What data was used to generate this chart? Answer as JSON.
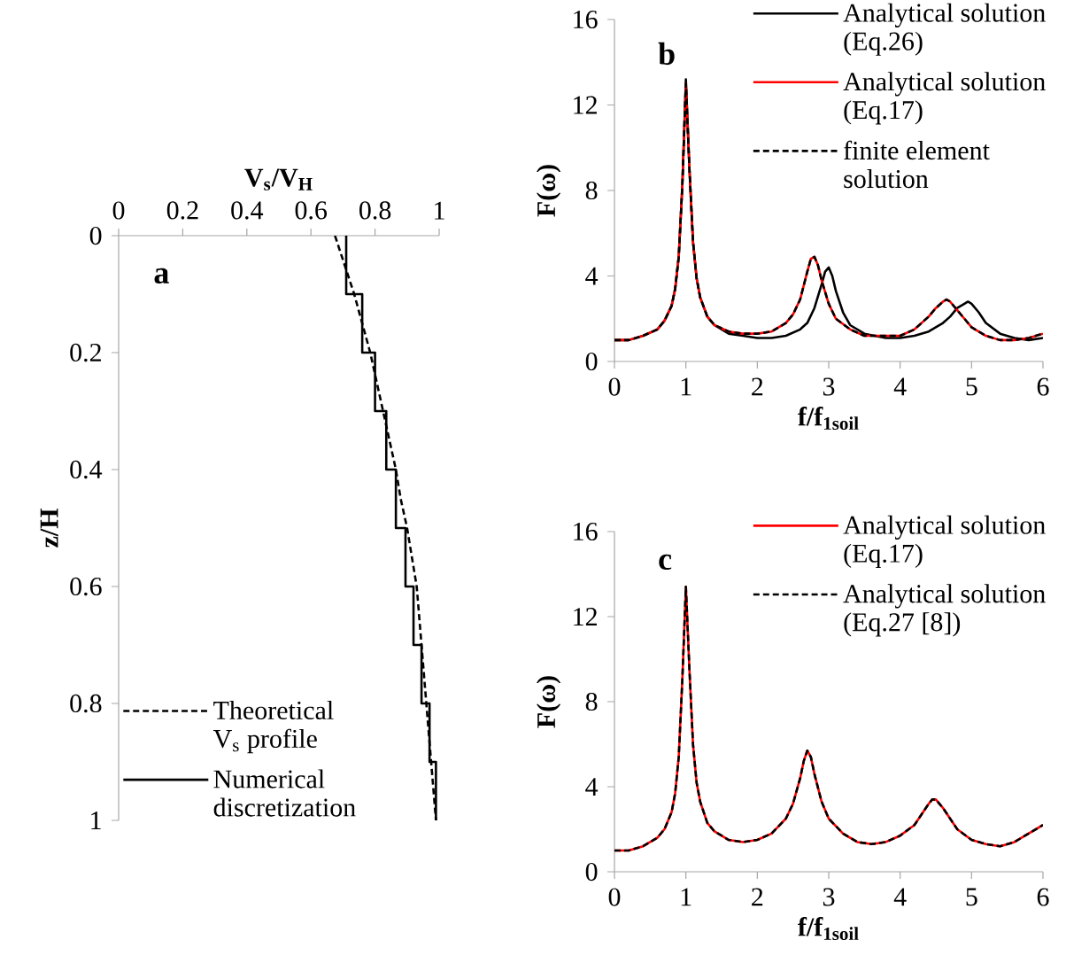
{
  "chart_data": [
    {
      "type": "line",
      "xlabel": "V$_{s}$/V$_{H}$",
      "ylabel": "z/H",
      "annotations": [
        "a"
      ],
      "xlim": [
        0,
        1
      ],
      "ylim": [
        1,
        0
      ],
      "xticks": [
        0,
        0.2,
        0.4,
        0.6,
        0.8,
        1
      ],
      "yticks": [
        0,
        0.2,
        0.4,
        0.6,
        0.8,
        1
      ],
      "legend": "bottom left",
      "series": [
        {
          "name": "Theoretical V$_{s}$ profile",
          "color": "#000000",
          "line_style": "dashed",
          "x": [
            0.675,
            0.705,
            0.735,
            0.76,
            0.785,
            0.805,
            0.825,
            0.845,
            0.865,
            0.88,
            0.9,
            0.915,
            0.93,
            0.945,
            0.96,
            0.975,
            0.99
          ],
          "values": [
            0,
            0.05,
            0.1,
            0.15,
            0.2,
            0.25,
            0.3,
            0.35,
            0.4,
            0.45,
            0.5,
            0.55,
            0.6,
            0.7,
            0.8,
            0.9,
            1
          ]
        },
        {
          "name": "Numerical discretization",
          "color": "#000000",
          "line_style": "solid",
          "x": [
            0.71,
            0.71,
            0.76,
            0.76,
            0.8,
            0.8,
            0.835,
            0.835,
            0.865,
            0.865,
            0.895,
            0.895,
            0.92,
            0.92,
            0.945,
            0.945,
            0.97,
            0.97,
            0.99,
            0.99
          ],
          "values": [
            0,
            0.1,
            0.1,
            0.2,
            0.2,
            0.3,
            0.3,
            0.4,
            0.4,
            0.5,
            0.5,
            0.6,
            0.6,
            0.7,
            0.7,
            0.8,
            0.8,
            0.9,
            0.9,
            1
          ]
        }
      ]
    },
    {
      "type": "line",
      "xlabel": "f/f$_{1soil}$",
      "ylabel": "F(ω)",
      "annotations": [
        "b"
      ],
      "xlim": [
        0,
        6
      ],
      "ylim": [
        0,
        16
      ],
      "xticks": [
        0,
        1,
        2,
        3,
        4,
        5,
        6
      ],
      "yticks": [
        0,
        4,
        8,
        12,
        16
      ],
      "legend": "top right",
      "series": [
        {
          "name": "Analytical solution (Eq.26)",
          "color": "#000000",
          "line_style": "solid",
          "x": [
            0,
            0.2,
            0.4,
            0.6,
            0.7,
            0.8,
            0.85,
            0.9,
            0.95,
            1.0,
            1.05,
            1.1,
            1.15,
            1.2,
            1.3,
            1.4,
            1.6,
            1.8,
            2.0,
            2.2,
            2.4,
            2.6,
            2.7,
            2.8,
            2.9,
            2.95,
            3.0,
            3.05,
            3.1,
            3.2,
            3.3,
            3.5,
            3.8,
            4.0,
            4.2,
            4.4,
            4.6,
            4.7,
            4.8,
            4.9,
            4.95,
            5.0,
            5.1,
            5.2,
            5.4,
            5.6,
            5.8,
            6.0
          ],
          "values": [
            1.0,
            1.0,
            1.2,
            1.5,
            1.9,
            2.6,
            3.4,
            4.9,
            8.2,
            13.2,
            9.0,
            5.6,
            3.9,
            3.0,
            2.1,
            1.7,
            1.3,
            1.2,
            1.1,
            1.1,
            1.2,
            1.5,
            1.8,
            2.5,
            3.6,
            4.2,
            4.4,
            4.0,
            3.3,
            2.3,
            1.7,
            1.3,
            1.1,
            1.1,
            1.2,
            1.4,
            1.8,
            2.1,
            2.5,
            2.7,
            2.8,
            2.7,
            2.3,
            1.8,
            1.3,
            1.1,
            1.0,
            1.1
          ]
        },
        {
          "name": "Analytical solution (Eq.17)",
          "color": "#ff0000",
          "line_style": "solid",
          "x": [
            0,
            0.2,
            0.4,
            0.6,
            0.7,
            0.8,
            0.85,
            0.9,
            0.95,
            1.0,
            1.05,
            1.1,
            1.15,
            1.2,
            1.3,
            1.4,
            1.6,
            1.8,
            2.0,
            2.2,
            2.4,
            2.5,
            2.6,
            2.7,
            2.75,
            2.8,
            2.85,
            2.9,
            3.0,
            3.1,
            3.3,
            3.5,
            3.8,
            4.0,
            4.2,
            4.4,
            4.5,
            4.6,
            4.65,
            4.7,
            4.8,
            4.9,
            5.0,
            5.2,
            5.4,
            5.6,
            5.8,
            6.0
          ],
          "values": [
            1.0,
            1.0,
            1.2,
            1.5,
            1.9,
            2.6,
            3.4,
            4.9,
            8.2,
            13.0,
            9.0,
            5.6,
            3.9,
            3.0,
            2.1,
            1.7,
            1.4,
            1.3,
            1.3,
            1.4,
            1.8,
            2.2,
            2.9,
            4.2,
            4.8,
            4.9,
            4.5,
            3.8,
            2.7,
            2.0,
            1.5,
            1.2,
            1.2,
            1.2,
            1.5,
            2.1,
            2.5,
            2.8,
            2.9,
            2.8,
            2.4,
            2.0,
            1.6,
            1.2,
            1.0,
            1.0,
            1.1,
            1.3
          ]
        },
        {
          "name": "finite element solution",
          "color": "#000000",
          "line_style": "dashed",
          "x": [
            0,
            0.2,
            0.4,
            0.6,
            0.7,
            0.8,
            0.85,
            0.9,
            0.95,
            1.0,
            1.05,
            1.1,
            1.15,
            1.2,
            1.3,
            1.4,
            1.6,
            1.8,
            2.0,
            2.2,
            2.4,
            2.5,
            2.6,
            2.7,
            2.75,
            2.8,
            2.85,
            2.9,
            3.0,
            3.1,
            3.3,
            3.5,
            3.8,
            4.0,
            4.2,
            4.4,
            4.5,
            4.6,
            4.65,
            4.7,
            4.8,
            4.9,
            5.0,
            5.2,
            5.4,
            5.6,
            5.8,
            6.0
          ],
          "values": [
            1.0,
            1.0,
            1.2,
            1.5,
            1.9,
            2.6,
            3.4,
            4.9,
            8.2,
            13.0,
            9.0,
            5.6,
            3.9,
            3.0,
            2.1,
            1.7,
            1.4,
            1.3,
            1.3,
            1.4,
            1.8,
            2.2,
            2.9,
            4.2,
            4.8,
            4.9,
            4.5,
            3.8,
            2.7,
            2.0,
            1.5,
            1.2,
            1.2,
            1.2,
            1.5,
            2.1,
            2.5,
            2.8,
            2.9,
            2.8,
            2.4,
            2.0,
            1.6,
            1.2,
            1.0,
            1.0,
            1.1,
            1.3
          ]
        }
      ]
    },
    {
      "type": "line",
      "xlabel": "f/f$_{1soil}$",
      "ylabel": "F(ω)",
      "annotations": [
        "c"
      ],
      "xlim": [
        0,
        6
      ],
      "ylim": [
        0,
        16
      ],
      "xticks": [
        0,
        1,
        2,
        3,
        4,
        5,
        6
      ],
      "yticks": [
        0,
        4,
        8,
        12,
        16
      ],
      "legend": "top right",
      "series": [
        {
          "name": "Analytical solution (Eq.17)",
          "color": "#ff0000",
          "line_style": "solid",
          "x": [
            0,
            0.2,
            0.4,
            0.6,
            0.7,
            0.8,
            0.85,
            0.9,
            0.95,
            1.0,
            1.05,
            1.1,
            1.15,
            1.2,
            1.3,
            1.4,
            1.6,
            1.8,
            2.0,
            2.2,
            2.4,
            2.5,
            2.6,
            2.65,
            2.7,
            2.75,
            2.8,
            2.9,
            3.0,
            3.2,
            3.4,
            3.6,
            3.8,
            4.0,
            4.2,
            4.3,
            4.4,
            4.45,
            4.5,
            4.6,
            4.8,
            5.0,
            5.2,
            5.4,
            5.6,
            5.8,
            6.0
          ],
          "values": [
            1.0,
            1.0,
            1.2,
            1.6,
            2.0,
            2.8,
            3.7,
            5.4,
            9.0,
            13.4,
            9.5,
            6.0,
            4.2,
            3.3,
            2.3,
            1.9,
            1.5,
            1.4,
            1.5,
            1.8,
            2.5,
            3.2,
            4.4,
            5.2,
            5.7,
            5.4,
            4.6,
            3.3,
            2.5,
            1.8,
            1.4,
            1.3,
            1.4,
            1.7,
            2.2,
            2.7,
            3.2,
            3.4,
            3.4,
            3.0,
            2.0,
            1.5,
            1.3,
            1.2,
            1.4,
            1.8,
            2.2
          ]
        },
        {
          "name": "Analytical solution (Eq.27 [8])",
          "color": "#000000",
          "line_style": "dashed",
          "x": [
            0,
            0.2,
            0.4,
            0.6,
            0.7,
            0.8,
            0.85,
            0.9,
            0.95,
            1.0,
            1.05,
            1.1,
            1.15,
            1.2,
            1.3,
            1.4,
            1.6,
            1.8,
            2.0,
            2.2,
            2.4,
            2.5,
            2.6,
            2.65,
            2.7,
            2.75,
            2.8,
            2.9,
            3.0,
            3.2,
            3.4,
            3.6,
            3.8,
            4.0,
            4.2,
            4.3,
            4.4,
            4.45,
            4.5,
            4.6,
            4.8,
            5.0,
            5.2,
            5.4,
            5.6,
            5.8,
            6.0
          ],
          "values": [
            1.0,
            1.0,
            1.2,
            1.6,
            2.0,
            2.8,
            3.7,
            5.4,
            9.0,
            13.4,
            9.5,
            6.0,
            4.2,
            3.3,
            2.3,
            1.9,
            1.5,
            1.4,
            1.5,
            1.8,
            2.5,
            3.2,
            4.4,
            5.2,
            5.7,
            5.4,
            4.6,
            3.3,
            2.5,
            1.8,
            1.4,
            1.3,
            1.4,
            1.7,
            2.2,
            2.7,
            3.2,
            3.4,
            3.4,
            3.0,
            2.0,
            1.5,
            1.3,
            1.2,
            1.4,
            1.8,
            2.2
          ]
        }
      ]
    }
  ]
}
